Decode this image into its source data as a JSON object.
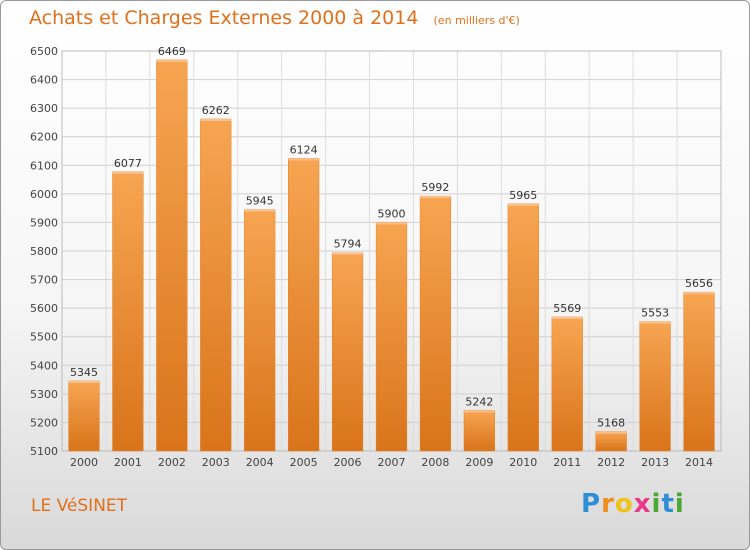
{
  "title": "Achats et Charges Externes 2000 à 2014",
  "subtitle": "(en milliers d'€)",
  "location": "LE VéSINET",
  "logo": {
    "letters": [
      "P",
      "r",
      "o",
      "x",
      "i",
      "t",
      "i"
    ],
    "colors": [
      "#2f8fd6",
      "#f08c1a",
      "#f0c21a",
      "#e8388a",
      "#4aa834",
      "#2f8fd6",
      "#4aa834"
    ]
  },
  "chart_data": {
    "type": "bar",
    "categories": [
      "2000",
      "2001",
      "2002",
      "2003",
      "2004",
      "2005",
      "2006",
      "2007",
      "2008",
      "2009",
      "2010",
      "2011",
      "2012",
      "2013",
      "2014"
    ],
    "values": [
      5345,
      6077,
      6469,
      6262,
      5945,
      6124,
      5794,
      5900,
      5992,
      5242,
      5965,
      5569,
      5168,
      5553,
      5656
    ],
    "ylim": [
      5100,
      6500
    ],
    "yticks": [
      5100,
      5200,
      5300,
      5400,
      5500,
      5600,
      5700,
      5800,
      5900,
      6000,
      6100,
      6200,
      6300,
      6400,
      6500
    ],
    "grid": true,
    "bar_color": "#f0892a"
  }
}
